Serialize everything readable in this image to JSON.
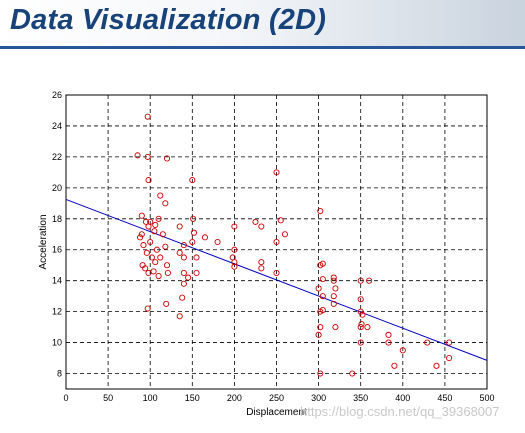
{
  "header": {
    "title": "Data Visualization (2D)"
  },
  "watermark": {
    "text": "https://blog.csdn.net/qq_39368007"
  },
  "colors": {
    "title": "#17427a",
    "rule": "#26579a",
    "points": "#cc0000",
    "fit_line": "#0000c0"
  },
  "chart_data": {
    "type": "scatter",
    "title": "",
    "xlabel": "Displacement",
    "ylabel": "Acceleration",
    "xlim": [
      0,
      500
    ],
    "ylim": [
      7,
      26
    ],
    "xticks": [
      0,
      50,
      100,
      150,
      200,
      250,
      300,
      350,
      400,
      450,
      500
    ],
    "yticks": [
      8,
      10,
      12,
      14,
      16,
      18,
      20,
      22,
      24,
      26
    ],
    "grid": true,
    "series": [
      {
        "points": [
          [
            85,
            22.1
          ],
          [
            97,
            24.6
          ],
          [
            97,
            22.0
          ],
          [
            98,
            20.5
          ],
          [
            120,
            21.9
          ],
          [
            112,
            19.5
          ],
          [
            118,
            19.0
          ],
          [
            150,
            20.5
          ],
          [
            250,
            21.0
          ],
          [
            90,
            18.2
          ],
          [
            95,
            17.8
          ],
          [
            98,
            17.5
          ],
          [
            105,
            17.2
          ],
          [
            110,
            18.0
          ],
          [
            115,
            17.0
          ],
          [
            90,
            17.0
          ],
          [
            100,
            16.5
          ],
          [
            108,
            16.0
          ],
          [
            88,
            16.8
          ],
          [
            92,
            16.3
          ],
          [
            96,
            15.8
          ],
          [
            102,
            15.5
          ],
          [
            106,
            15.2
          ],
          [
            112,
            15.5
          ],
          [
            118,
            16.2
          ],
          [
            120,
            15.0
          ],
          [
            91,
            15.0
          ],
          [
            94,
            14.8
          ],
          [
            98,
            14.5
          ],
          [
            104,
            14.6
          ],
          [
            110,
            14.3
          ],
          [
            121,
            14.5
          ],
          [
            97,
            12.2
          ],
          [
            119,
            12.5
          ],
          [
            100,
            17.8
          ],
          [
            106,
            17.6
          ],
          [
            135,
            17.5
          ],
          [
            140,
            16.3
          ],
          [
            151,
            18.0
          ],
          [
            152,
            17.1
          ],
          [
            140,
            15.5
          ],
          [
            150,
            16.5
          ],
          [
            155,
            15.5
          ],
          [
            135,
            15.8
          ],
          [
            140,
            14.5
          ],
          [
            140,
            13.8
          ],
          [
            145,
            14.2
          ],
          [
            155,
            14.5
          ],
          [
            138,
            12.9
          ],
          [
            135,
            11.7
          ],
          [
            165,
            16.8
          ],
          [
            180,
            16.5
          ],
          [
            200,
            17.5
          ],
          [
            200,
            16.0
          ],
          [
            198,
            15.5
          ],
          [
            200,
            15.2
          ],
          [
            200,
            14.9
          ],
          [
            225,
            17.8
          ],
          [
            232,
            17.5
          ],
          [
            232,
            15.2
          ],
          [
            232,
            14.8
          ],
          [
            250,
            16.5
          ],
          [
            255,
            17.9
          ],
          [
            260,
            17.0
          ],
          [
            250,
            14.5
          ],
          [
            302,
            18.5
          ],
          [
            302,
            15.0
          ],
          [
            305,
            15.1
          ],
          [
            305,
            14.1
          ],
          [
            300,
            13.5
          ],
          [
            305,
            13.0
          ],
          [
            302,
            12.0
          ],
          [
            305,
            12.1
          ],
          [
            302,
            11.0
          ],
          [
            300,
            10.5
          ],
          [
            302,
            8.0
          ],
          [
            318,
            14.2
          ],
          [
            320,
            13.5
          ],
          [
            318,
            12.5
          ],
          [
            320,
            11.0
          ],
          [
            318,
            13.0
          ],
          [
            318,
            14.0
          ],
          [
            350,
            14.0
          ],
          [
            350,
            12.8
          ],
          [
            350,
            12.0
          ],
          [
            352,
            11.8
          ],
          [
            351,
            11.2
          ],
          [
            350,
            11.0
          ],
          [
            350,
            10.0
          ],
          [
            340,
            8.0
          ],
          [
            360,
            14.0
          ],
          [
            358,
            11.0
          ],
          [
            383,
            10.5
          ],
          [
            383,
            10.0
          ],
          [
            390,
            8.5
          ],
          [
            400,
            9.5
          ],
          [
            429,
            10.0
          ],
          [
            440,
            8.5
          ],
          [
            455,
            9.0
          ],
          [
            455,
            10.0
          ]
        ]
      }
    ],
    "fit_line": {
      "x": [
        0,
        500
      ],
      "y": [
        19.25,
        8.85
      ]
    }
  }
}
